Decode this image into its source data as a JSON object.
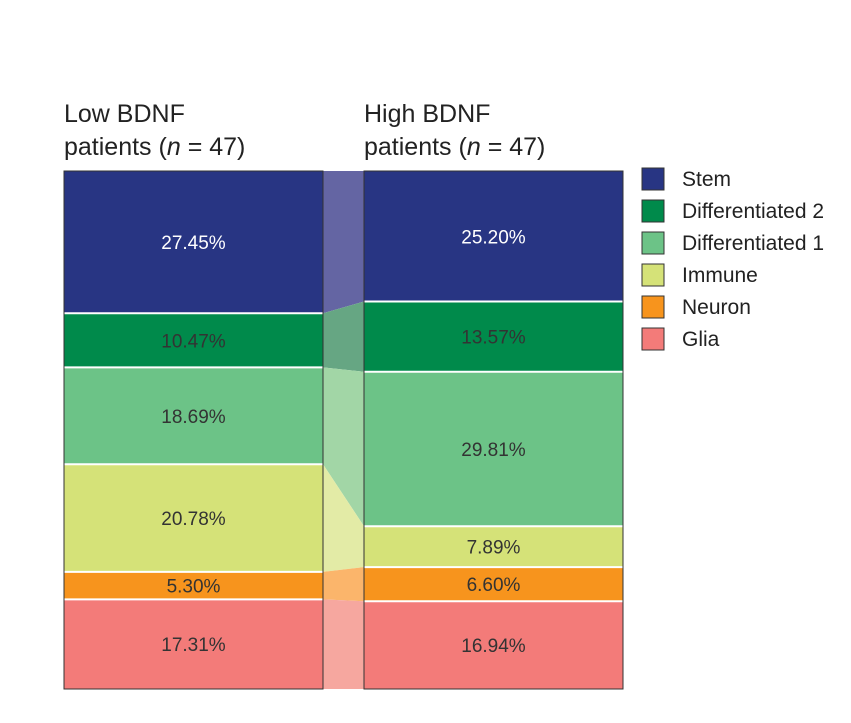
{
  "chart_data": {
    "type": "stacked-bar-alluvial",
    "categories": [
      "Stem",
      "Differentiated 2",
      "Differentiated 1",
      "Immune",
      "Neuron",
      "Glia"
    ],
    "colors": {
      "Stem": "#283583",
      "Differentiated 2": "#008A4B",
      "Differentiated 1": "#6CC387",
      "Immune": "#D5E278",
      "Neuron": "#F7941D",
      "Glia": "#F37B79"
    },
    "flow_colors": {
      "Stem": "#6465A3",
      "Differentiated 2": "#66A683",
      "Differentiated 1": "#A2D6A6",
      "Immune": "#E3EBA6",
      "Neuron": "#FBB56B",
      "Glia": "#F6A79F"
    },
    "series": [
      {
        "name": "Low BDNF",
        "title": {
          "line1": "Low BDNF",
          "line2_prefix": "patients (",
          "italic": "n",
          "line2_suffix": " = 47)"
        },
        "values": [
          27.45,
          10.47,
          18.69,
          20.78,
          5.3,
          17.31
        ],
        "labels": [
          "27.45%",
          "10.47%",
          "18.69%",
          "20.78%",
          "5.30%",
          "17.31%"
        ]
      },
      {
        "name": "High BDNF",
        "title": {
          "line1": "High BDNF",
          "line2_prefix": "patients (",
          "italic": "n",
          "line2_suffix": " = 47)"
        },
        "values": [
          25.2,
          13.57,
          29.81,
          7.89,
          6.6,
          16.94
        ],
        "labels": [
          "25.20%",
          "13.57%",
          "29.81%",
          "7.89%",
          "6.60%",
          "16.94%"
        ]
      }
    ],
    "legend": {
      "placement": "right",
      "entries": [
        "Stem",
        "Differentiated 2",
        "Differentiated 1",
        "Immune",
        "Neuron",
        "Glia"
      ]
    },
    "unit": "%"
  }
}
